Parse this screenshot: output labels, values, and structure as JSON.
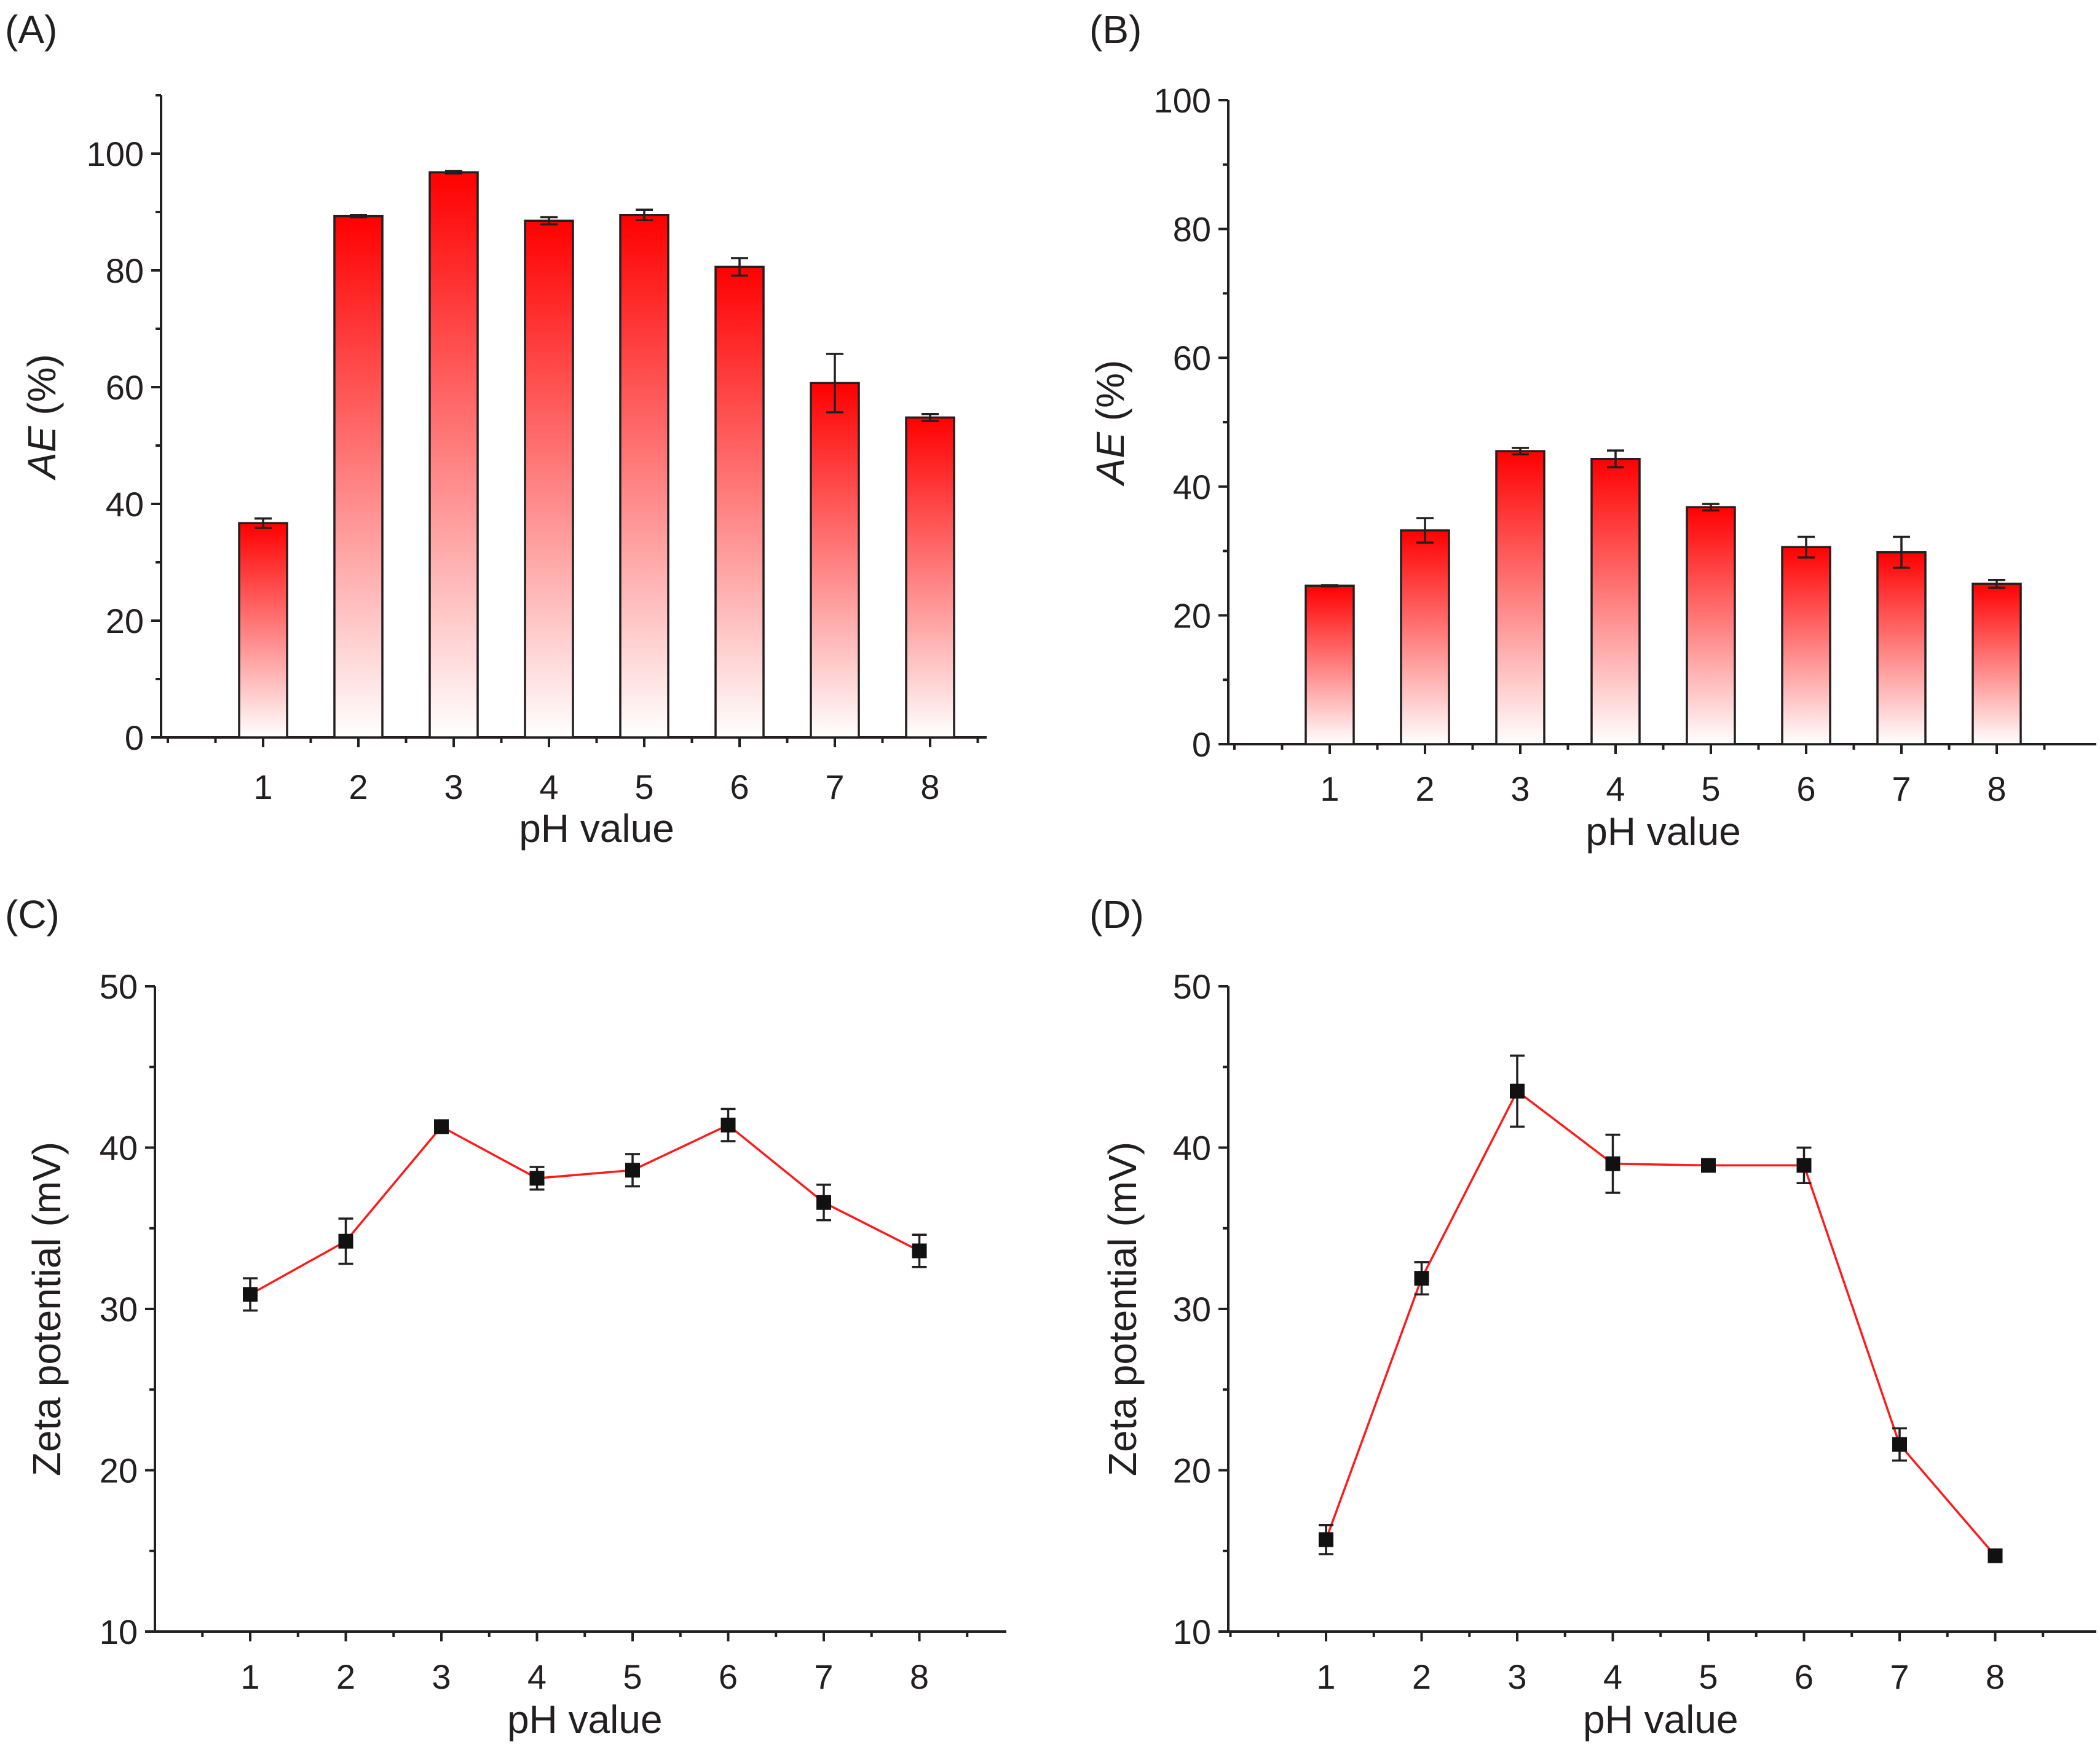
{
  "colors": {
    "bar_top": "#ff0000",
    "bar_bottom": "#ffffff",
    "line": "#ff1a1a",
    "marker": "#111111",
    "axis": "#231f20"
  },
  "chart_data": [
    {
      "panel": "(A)",
      "type": "bar",
      "categories": [
        "1",
        "2",
        "3",
        "4",
        "5",
        "6",
        "7",
        "8"
      ],
      "values": [
        36.7,
        89.3,
        96.8,
        88.5,
        89.5,
        80.6,
        60.7,
        54.8
      ],
      "errors": [
        0.8,
        0.2,
        0.2,
        0.6,
        0.9,
        1.5,
        5.0,
        0.6
      ],
      "xlabel": "pH value",
      "ylabel_italic": "AE",
      "ylabel_rest": " (%)",
      "ylim": [
        0,
        110
      ],
      "yticks": [
        0,
        20,
        40,
        60,
        80,
        100
      ],
      "ytick_labels": [
        "0",
        "20",
        "40",
        "60",
        "80",
        "100"
      ]
    },
    {
      "panel": "(B)",
      "type": "bar",
      "categories": [
        "1",
        "2",
        "3",
        "4",
        "5",
        "6",
        "7",
        "8"
      ],
      "values": [
        24.6,
        33.2,
        45.5,
        44.3,
        36.8,
        30.6,
        29.8,
        24.9
      ],
      "errors": [
        0.1,
        1.9,
        0.5,
        1.3,
        0.5,
        1.6,
        2.4,
        0.6
      ],
      "xlabel": "pH value",
      "ylabel_italic": "AE",
      "ylabel_rest": " (%)",
      "ylim": [
        0,
        100
      ],
      "yticks": [
        0,
        20,
        40,
        60,
        80,
        100
      ],
      "ytick_labels": [
        "0",
        "20",
        "40",
        "60",
        "80",
        "100"
      ]
    },
    {
      "panel": "(C)",
      "type": "line",
      "x": [
        1,
        2,
        3,
        4,
        5,
        6,
        7,
        8
      ],
      "categories": [
        "1",
        "2",
        "3",
        "4",
        "5",
        "6",
        "7",
        "8"
      ],
      "values": [
        30.9,
        34.2,
        41.3,
        38.1,
        38.6,
        41.4,
        36.6,
        33.6
      ],
      "errors": [
        1.0,
        1.4,
        0.2,
        0.7,
        1.0,
        1.0,
        1.1,
        1.0
      ],
      "xlabel": "pH value",
      "ylabel": "Zeta potential (mV)",
      "ylim": [
        10,
        50
      ],
      "yticks": [
        10,
        20,
        30,
        40,
        50
      ],
      "ytick_labels": [
        "10",
        "20",
        "30",
        "40",
        "50"
      ]
    },
    {
      "panel": "(D)",
      "type": "line",
      "x": [
        1,
        2,
        3,
        4,
        5,
        6,
        7,
        8
      ],
      "categories": [
        "1",
        "2",
        "3",
        "4",
        "5",
        "6",
        "7",
        "8"
      ],
      "values": [
        15.7,
        31.9,
        43.5,
        39.0,
        38.9,
        38.9,
        21.6,
        14.7
      ],
      "errors": [
        0.9,
        1.0,
        2.2,
        1.8,
        0.2,
        1.1,
        1.0,
        0.2
      ],
      "xlabel": "pH value",
      "ylabel": "Zeta potential (mV)",
      "ylim": [
        10,
        50
      ],
      "yticks": [
        10,
        20,
        30,
        40,
        50
      ],
      "ytick_labels": [
        "10",
        "20",
        "30",
        "40",
        "50"
      ]
    }
  ]
}
